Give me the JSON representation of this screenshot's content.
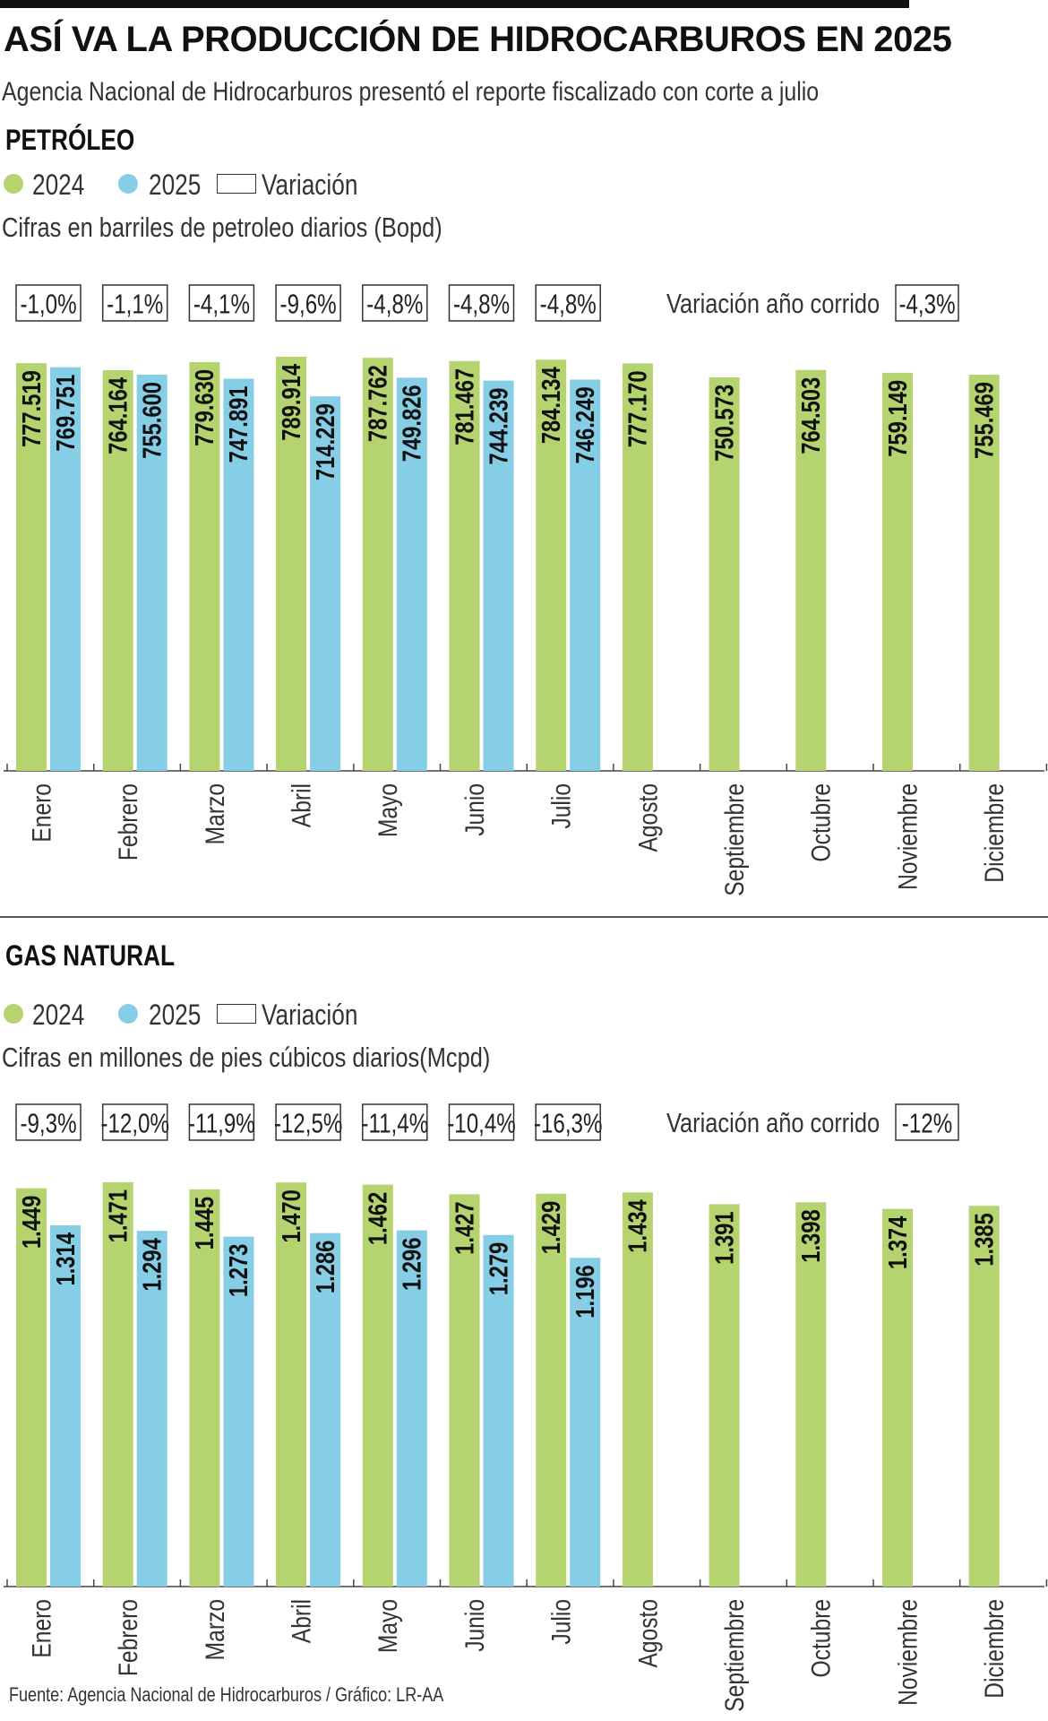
{
  "title": "ASÍ VA LA PRODUCCIÓN DE HIDROCARBUROS EN 2025",
  "subtitle": "Agencia Nacional de Hidrocarburos presentó el reporte fiscalizado con corte a julio",
  "source": "Fuente: Agencia Nacional de Hidrocarburos / Gráfico: LR-AA",
  "legend": {
    "y2024": "2024",
    "y2025": "2025",
    "variation": "Variación"
  },
  "colors": {
    "y2024": "#b5d36f",
    "y2025": "#86cde6"
  },
  "chart_data": [
    {
      "type": "bar",
      "title": "PETRÓLEO",
      "units": "Cifras en barriles de petroleo diarios (Bopd)",
      "categories": [
        "Enero",
        "Febrero",
        "Marzo",
        "Abril",
        "Mayo",
        "Junio",
        "Julio",
        "Agosto",
        "Septiembre",
        "Octubre",
        "Noviembre",
        "Diciembre"
      ],
      "series": [
        {
          "name": "2024",
          "values": [
            777519,
            764164,
            779630,
            789914,
            787762,
            781467,
            784134,
            777170,
            750573,
            764503,
            759149,
            755469
          ],
          "labels": [
            "777.519",
            "764.164",
            "779.630",
            "789.914",
            "787.762",
            "781.467",
            "784.134",
            "777.170",
            "750.573",
            "764.503",
            "759.149",
            "755.469"
          ]
        },
        {
          "name": "2025",
          "values": [
            769751,
            755600,
            747891,
            714229,
            749826,
            744239,
            746249,
            null,
            null,
            null,
            null,
            null
          ],
          "labels": [
            "769.751",
            "755.600",
            "747.891",
            "714.229",
            "749.826",
            "744.239",
            "746.249",
            null,
            null,
            null,
            null,
            null
          ]
        }
      ],
      "variation": [
        "-1,0%",
        "-1,1%",
        "-4,1%",
        "-9,6%",
        "-4,8%",
        "-4,8%",
        "-4,8%"
      ],
      "ytd_label": "Variación año corrido",
      "ytd_value": "-4,3%",
      "ylim": [
        0,
        800000
      ]
    },
    {
      "type": "bar",
      "title": "GAS NATURAL",
      "units": "Cifras en millones de pies cúbicos diarios(Mcpd)",
      "categories": [
        "Enero",
        "Febrero",
        "Marzo",
        "Abril",
        "Mayo",
        "Junio",
        "Julio",
        "Agosto",
        "Septiembre",
        "Octubre",
        "Noviembre",
        "Diciembre"
      ],
      "series": [
        {
          "name": "2024",
          "values": [
            1449,
            1471,
            1445,
            1470,
            1462,
            1427,
            1429,
            1434,
            1391,
            1398,
            1374,
            1385
          ],
          "labels": [
            "1.449",
            "1.471",
            "1.445",
            "1.470",
            "1.462",
            "1.427",
            "1.429",
            "1.434",
            "1.391",
            "1.398",
            "1.374",
            "1.385"
          ]
        },
        {
          "name": "2025",
          "values": [
            1314,
            1294,
            1273,
            1286,
            1296,
            1279,
            1196,
            null,
            null,
            null,
            null,
            null
          ],
          "labels": [
            "1.314",
            "1.294",
            "1.273",
            "1.286",
            "1.296",
            "1.279",
            "1.196",
            null,
            null,
            null,
            null,
            null
          ]
        }
      ],
      "variation": [
        "-9,3%",
        "-12,0%",
        "-11,9%",
        "-12,5%",
        "-11,4%",
        "-10,4%",
        "-16,3%"
      ],
      "ytd_label": "Variación año corrido",
      "ytd_value": "-12%",
      "ylim": [
        0,
        1500
      ]
    }
  ]
}
